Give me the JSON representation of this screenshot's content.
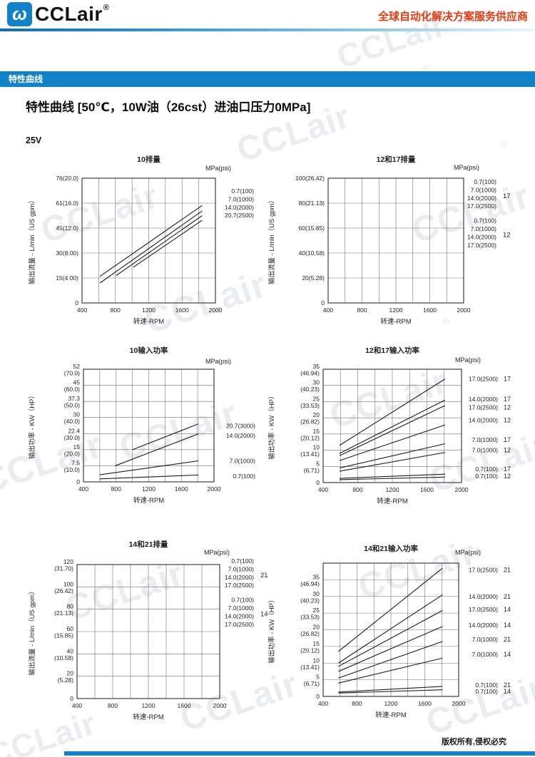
{
  "header": {
    "brand": "CCLair",
    "reg": "®",
    "logo_glyph": "ω",
    "tagline": "全球自动化解决方案服务供应商"
  },
  "section_bar": {
    "label": "特性曲线"
  },
  "page_title": "特性曲线 [50℃，10W油（26cst）进油口压力0MPa]",
  "model": "25V",
  "footer": {
    "copyright": "版权所有,侵权必究"
  },
  "watermark": {
    "text": "CCLair",
    "reg": "®"
  },
  "colors": {
    "accent_blue": "#1182c8",
    "tagline_red": "#e8380d",
    "curve": "#1c1c1c",
    "grid": "#707070"
  },
  "chart_data": [
    {
      "type": "line",
      "title": "10排量",
      "xlabel": "转速-RPM",
      "ylabel": "输出流量 - L/min（US gpm）",
      "x_range": [
        400,
        2000
      ],
      "x_ticks": [
        400,
        800,
        1200,
        1600,
        2000
      ],
      "x_grid_step": 200,
      "y_ticks": [
        {
          "v": 0,
          "lines": [
            "0"
          ]
        },
        {
          "v": 15,
          "lines": [
            "15(4.00)"
          ]
        },
        {
          "v": 30,
          "lines": [
            "30(8.00)"
          ]
        },
        {
          "v": 45,
          "lines": [
            "45(12.0)"
          ]
        },
        {
          "v": 61,
          "lines": [
            "61(16.0)"
          ]
        },
        {
          "v": 76,
          "lines": [
            "76(20.0)"
          ]
        }
      ],
      "series": [
        {
          "label": "0.7(100)",
          "points": [
            [
              615,
              16
            ],
            [
              1840,
              59.5
            ]
          ]
        },
        {
          "label": "7.0(1000)",
          "points": [
            [
              615,
              12
            ],
            [
              1840,
              56
            ]
          ]
        },
        {
          "label": "14.0(2000)",
          "points": [
            [
              810,
              16.5
            ],
            [
              1840,
              53
            ]
          ]
        },
        {
          "label": "20.7(2500)",
          "points": [
            [
              1015,
              21.5
            ],
            [
              1840,
              50
            ]
          ]
        }
      ],
      "legend": {
        "title": "MPa(psi)",
        "mode": "stack",
        "items": [
          {
            "label": "0.7(100)"
          },
          {
            "label": "7.0(1000)"
          },
          {
            "label": "14.0(2000)"
          },
          {
            "label": "20.7(2500)"
          }
        ]
      }
    },
    {
      "type": "line",
      "title": "12和17排量",
      "xlabel": "转速-RPM",
      "ylabel": "输出流量 - L/min（US gpm）",
      "x_range": [
        400,
        2000
      ],
      "x_ticks": [
        400,
        800,
        1200,
        1600,
        2000
      ],
      "x_grid_step": 200,
      "y_ticks": [
        {
          "v": 0,
          "lines": [
            "0"
          ]
        },
        {
          "v": 20,
          "lines": [
            "20(5.28)"
          ]
        },
        {
          "v": 40,
          "lines": [
            "40(10.58)"
          ]
        },
        {
          "v": 60,
          "lines": [
            "60(15.85)"
          ]
        },
        {
          "v": 80,
          "lines": [
            "80(21.13)"
          ]
        },
        {
          "v": 100,
          "lines": [
            "100(26.42)"
          ]
        }
      ],
      "series": [],
      "legend": {
        "title": "MPa(psi)",
        "mode": "groups",
        "groups": [
          {
            "code": "17",
            "items": [
              "0.7(100)",
              "7.0(1000)",
              "14.0(2000)",
              "17.0(2500)"
            ]
          },
          {
            "code": "12",
            "items": [
              "0.7(100)",
              "7.0(1000)",
              "14.0(2000)",
              "17.0(2500)"
            ]
          }
        ]
      }
    },
    {
      "type": "line",
      "title": "10输入功率",
      "xlabel": "转速-RPM",
      "ylabel": "输出功率 - KW（HP）",
      "x_range": [
        400,
        2000
      ],
      "x_ticks": [
        400,
        800,
        1200,
        1600,
        2000
      ],
      "x_grid_step": 200,
      "y_ticks": [
        {
          "v": 0,
          "lines": [
            "0"
          ]
        },
        {
          "v": 7.5,
          "lines": [
            "7.5",
            "(10.0)"
          ]
        },
        {
          "v": 15,
          "lines": [
            "15",
            "(20.0)"
          ]
        },
        {
          "v": 22.4,
          "lines": [
            "22.4",
            "(30.0)"
          ]
        },
        {
          "v": 30,
          "lines": [
            "30",
            "(40.0)"
          ]
        },
        {
          "v": 37.3,
          "lines": [
            "37.3",
            "(50.0)"
          ]
        },
        {
          "v": 45,
          "lines": [
            "45",
            "(60.0)"
          ]
        },
        {
          "v": 52,
          "lines": [
            "52",
            "(70.0)"
          ]
        }
      ],
      "series": [
        {
          "label": "20.7(3000)",
          "points": [
            [
              1000,
              15
            ],
            [
              1810,
              27
            ]
          ]
        },
        {
          "label": "14.0(2000)",
          "points": [
            [
              790,
              7.5
            ],
            [
              1810,
              22.3
            ]
          ]
        },
        {
          "label": "7.0(1000)",
          "points": [
            [
              600,
              3.3
            ],
            [
              1810,
              9.8
            ]
          ]
        },
        {
          "label": "0.7(100)",
          "points": [
            [
              600,
              1.4
            ],
            [
              1810,
              3.2
            ]
          ]
        }
      ],
      "legend": {
        "title": "MPa(psi)",
        "mode": "aty",
        "items": [
          {
            "label": "20.7(3000)",
            "y": 26
          },
          {
            "label": "14.0(2000)",
            "y": 21.5
          },
          {
            "label": "7.0(1000)",
            "y": 9.8
          },
          {
            "label": "0.7(100)",
            "y": 2.6
          }
        ]
      }
    },
    {
      "type": "line",
      "title": "12和17输入功率",
      "xlabel": "转速-RPM",
      "ylabel": "输出功率 - KW（HP）",
      "x_range": [
        400,
        2000
      ],
      "x_ticks": [
        400,
        800,
        1200,
        1600,
        2000
      ],
      "x_grid_step": 200,
      "y_ticks": [
        {
          "v": 0,
          "lines": [
            "0"
          ]
        },
        {
          "v": 5,
          "lines": [
            "5",
            "(6.71)"
          ]
        },
        {
          "v": 10,
          "lines": [
            "10",
            "(13.41)"
          ]
        },
        {
          "v": 15,
          "lines": [
            "15",
            "(20.12)"
          ]
        },
        {
          "v": 20,
          "lines": [
            "20",
            "(26.82)"
          ]
        },
        {
          "v": 25,
          "lines": [
            "25",
            "(33.53)"
          ]
        },
        {
          "v": 30,
          "lines": [
            "30",
            "(40.23)"
          ]
        },
        {
          "v": 35,
          "lines": [
            "35",
            "(46.94)"
          ]
        }
      ],
      "series": [
        {
          "label": "17.0(2500)",
          "code": "17",
          "points": [
            [
              590,
              11.5
            ],
            [
              1810,
              32
            ]
          ]
        },
        {
          "label": "14.0(2000)",
          "code": "17",
          "points": [
            [
              590,
              9
            ],
            [
              1810,
              25.5
            ]
          ]
        },
        {
          "label": "17.0(2500)",
          "code": "12",
          "points": [
            [
              590,
              8.3
            ],
            [
              1810,
              23.8
            ]
          ]
        },
        {
          "label": "14.0(2000)",
          "code": "12",
          "points": [
            [
              590,
              6.8
            ],
            [
              1810,
              17.8
            ]
          ]
        },
        {
          "label": "7.0(1000)",
          "code": "17",
          "points": [
            [
              590,
              4.5
            ],
            [
              1810,
              12
            ]
          ]
        },
        {
          "label": "7.0(1000)",
          "code": "12",
          "points": [
            [
              590,
              3.5
            ],
            [
              1810,
              9.3
            ]
          ]
        },
        {
          "label": "0.7(100)",
          "code": "17",
          "points": [
            [
              590,
              1.3
            ],
            [
              1810,
              2.6
            ]
          ]
        },
        {
          "label": "0.7(100)",
          "code": "12",
          "points": [
            [
              590,
              0.9
            ],
            [
              1810,
              1.7
            ]
          ]
        }
      ],
      "legend": {
        "title": "MPa(psi)",
        "mode": "aty",
        "items": [
          {
            "label": "17.0(2500)",
            "code": "17",
            "y": 32
          },
          {
            "label": "14.0(2000)",
            "code": "17",
            "y": 25.8
          },
          {
            "label": "17.0(2500)",
            "code": "12",
            "y": 23.2
          },
          {
            "label": "14.0(2000)",
            "code": "12",
            "y": 19.3
          },
          {
            "label": "7.0(1000)",
            "code": "17",
            "y": 13.2
          },
          {
            "label": "7.0(1000)",
            "code": "12",
            "y": 10
          },
          {
            "label": "0.7(100)",
            "code": "17",
            "y": 4.2
          },
          {
            "label": "0.7(100)",
            "code": "12",
            "y": 2.0
          }
        ]
      }
    },
    {
      "type": "line",
      "title": "14和21排量",
      "xlabel": "转速-RPM",
      "ylabel": "输出流量 - L/min（US gpm）",
      "x_range": [
        400,
        2000
      ],
      "x_ticks": [
        400,
        800,
        1200,
        1600,
        2000
      ],
      "x_grid_step": 200,
      "y_ticks": [
        {
          "v": 0,
          "lines": [
            "0"
          ]
        },
        {
          "v": 20,
          "lines": [
            "20",
            "(5.28)"
          ]
        },
        {
          "v": 40,
          "lines": [
            "40",
            "(10.58)"
          ]
        },
        {
          "v": 60,
          "lines": [
            "60",
            "(15.85)"
          ]
        },
        {
          "v": 80,
          "lines": [
            "80",
            "(21.13)"
          ]
        },
        {
          "v": 100,
          "lines": [
            "100",
            "(26.42)"
          ]
        },
        {
          "v": 120,
          "lines": [
            "120",
            "(31.70)"
          ]
        }
      ],
      "series": [],
      "legend": {
        "title": "MPa(psi)",
        "mode": "groups",
        "groups": [
          {
            "code": "21",
            "items": [
              "0.7(100)",
              "7.0(1000)",
              "14.0(2000)",
              "17.0(2500)"
            ]
          },
          {
            "code": "14",
            "items": [
              "0.7(100)",
              "7.0(1000)",
              "14.0(2000)",
              "17.0(2500)"
            ]
          }
        ]
      }
    },
    {
      "type": "line",
      "title": "14和21输入功率",
      "xlabel": "转速-RPM",
      "ylabel": "输出功率 - KW（HP）",
      "x_range": [
        400,
        2000
      ],
      "x_ticks": [
        400,
        800,
        1200,
        1600,
        2000
      ],
      "x_grid_step": 200,
      "y_ticks": [
        {
          "v": 0,
          "lines": [
            "0"
          ]
        },
        {
          "v": 5,
          "lines": [
            "5",
            "(6.71)"
          ]
        },
        {
          "v": 10,
          "lines": [
            "10",
            "(13.41)"
          ]
        },
        {
          "v": 15,
          "lines": [
            "15",
            "(20.12)"
          ]
        },
        {
          "v": 20,
          "lines": [
            "20",
            "(26.82)"
          ]
        },
        {
          "v": 25,
          "lines": [
            "25",
            "(33.53)"
          ]
        },
        {
          "v": 30,
          "lines": [
            "30",
            "(40.23)"
          ]
        },
        {
          "v": 35,
          "lines": [
            "35",
            "(46.94)"
          ]
        },
        {
          "v": 40,
          "lines": []
        }
      ],
      "series": [
        {
          "label": "17.0(2500)",
          "code": "21",
          "points": [
            [
              580,
              13.5
            ],
            [
              1810,
              38.5
            ]
          ]
        },
        {
          "label": "14.0(2000)",
          "code": "21",
          "points": [
            [
              580,
              10
            ],
            [
              1810,
              30.5
            ]
          ]
        },
        {
          "label": "17.0(2500)",
          "code": "14",
          "points": [
            [
              580,
              9
            ],
            [
              1810,
              25.8
            ]
          ]
        },
        {
          "label": "14.0(2000)",
          "code": "14",
          "points": [
            [
              580,
              7.5
            ],
            [
              1810,
              21
            ]
          ]
        },
        {
          "label": "7.0(1000)",
          "code": "21",
          "points": [
            [
              580,
              5.5
            ],
            [
              1810,
              16.5
            ]
          ]
        },
        {
          "label": "7.0(1000)",
          "code": "14",
          "points": [
            [
              580,
              4
            ],
            [
              1810,
              11.5
            ]
          ]
        },
        {
          "label": "0.7(100)",
          "code": "21",
          "points": [
            [
              580,
              1.3
            ],
            [
              1810,
              3
            ]
          ]
        },
        {
          "label": "0.7(100)",
          "code": "14",
          "points": [
            [
              580,
              1
            ],
            [
              1810,
              2
            ]
          ]
        }
      ],
      "legend": {
        "title": "MPa(psi)",
        "mode": "aty",
        "items": [
          {
            "label": "17.0(2500)",
            "code": "21",
            "y": 38
          },
          {
            "label": "14.0(2000)",
            "code": "21",
            "y": 30
          },
          {
            "label": "17.0(2500)",
            "code": "14",
            "y": 26.1
          },
          {
            "label": "14.0(2000)",
            "code": "14",
            "y": 21.4
          },
          {
            "label": "7.0(1000)",
            "code": "21",
            "y": 17.1
          },
          {
            "label": "7.0(1000)",
            "code": "14",
            "y": 12.6
          },
          {
            "label": "0.7(100)",
            "code": "21",
            "y": 3.4
          },
          {
            "label": "0.7(100)",
            "code": "14",
            "y": 1.5
          }
        ]
      }
    }
  ]
}
